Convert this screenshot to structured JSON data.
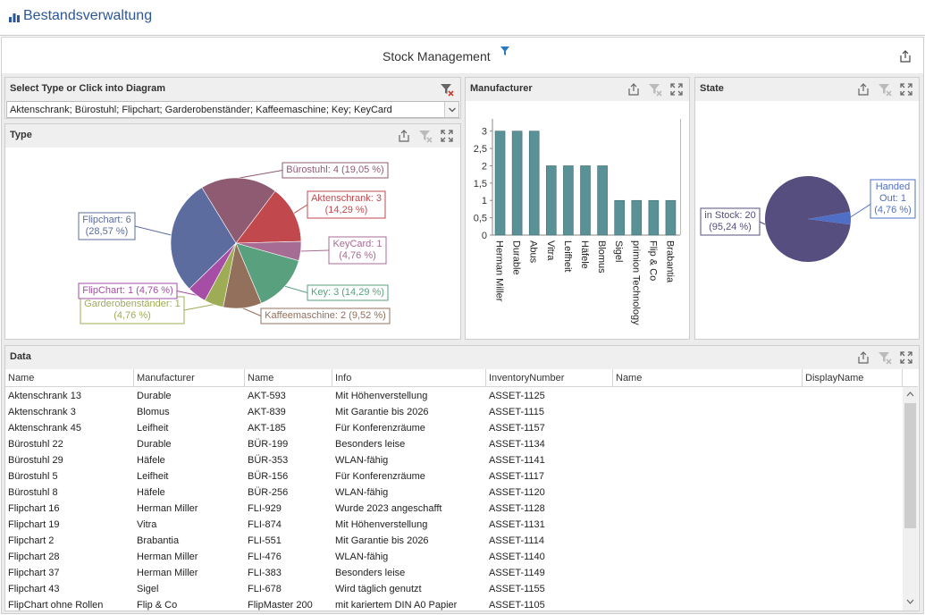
{
  "app": {
    "title": "Bestandsverwaltung"
  },
  "dashboard": {
    "title": "Stock Management"
  },
  "select_panel": {
    "title": "Select Type or Click into Diagram",
    "combo_value": "Aktenschrank; Bürostuhl; Flipchart; Garderobenständer; Kaffeemaschine; Key; KeyCard"
  },
  "type_panel": {
    "title": "Type"
  },
  "manufacturer_panel": {
    "title": "Manufacturer"
  },
  "state_panel": {
    "title": "State"
  },
  "data_panel": {
    "title": "Data"
  },
  "colors": {
    "accent": "#2b579a",
    "bar": "#5a9196",
    "state_stock": "#564e7e",
    "state_out": "#4f6fc7"
  },
  "chart_data": [
    {
      "type": "pie",
      "name": "Type",
      "slices": [
        {
          "label": "Bürostuhl",
          "value": 4,
          "label_text": "Bürostuhl: 4 (19,05 %)",
          "color": "#8f5b72"
        },
        {
          "label": "Aktenschrank",
          "value": 3,
          "label_text_1": "Aktenschrank: 3",
          "label_text_2": "(14,29 %)",
          "color": "#c1494d"
        },
        {
          "label": "KeyCard",
          "value": 1,
          "label_text_1": "KeyCard: 1",
          "label_text_2": "(4,76 %)",
          "color": "#a76c93"
        },
        {
          "label": "Key",
          "value": 3,
          "label_text": "Key: 3 (14,29 %)",
          "color": "#59a07e"
        },
        {
          "label": "Kaffeemaschine",
          "value": 2,
          "label_text": "Kaffeemaschine: 2 (9,52 %)",
          "color": "#93705c"
        },
        {
          "label": "Garderobenständer",
          "value": 1,
          "label_text_1": "Garderobenständer: 1",
          "label_text_2": "(4,76 %)",
          "color": "#9ead55"
        },
        {
          "label": "FlipChart",
          "value": 1,
          "label_text": "FlipChart: 1 (4,76 %)",
          "color": "#a64ea6"
        },
        {
          "label": "Flipchart",
          "value": 6,
          "label_text_1": "Flipchart: 6",
          "label_text_2": "(28,57 %)",
          "color": "#5c6c9e"
        }
      ]
    },
    {
      "type": "bar",
      "name": "Manufacturer",
      "categories": [
        "Herman Miller",
        "Durable",
        "Abus",
        "Vitra",
        "Leifheit",
        "Häfele",
        "Blomus",
        "Sigel",
        "primion Technology",
        "Flip & Co",
        "Brabantia"
      ],
      "values": [
        3,
        3,
        3,
        2,
        2,
        2,
        2,
        1,
        1,
        1,
        1
      ],
      "y_ticks": [
        "0",
        "0,5",
        "1",
        "1,5",
        "2",
        "2,5",
        "3"
      ],
      "ylim": [
        0,
        3.25
      ],
      "grid": false
    },
    {
      "type": "pie",
      "name": "State",
      "slices": [
        {
          "label": "in Stock",
          "value": 20,
          "label_text_1": "in Stock: 20",
          "label_text_2": "(95,24 %)"
        },
        {
          "label": "Handed Out",
          "value": 1,
          "label_text_1": "Handed",
          "label_text_2": "Out: 1",
          "label_text_3": "(4,76 %)"
        }
      ]
    }
  ],
  "grid": {
    "columns": [
      "Name",
      "Manufacturer",
      "Name",
      "Info",
      "InventoryNumber",
      "Name",
      "DisplayName"
    ],
    "rows": [
      [
        "Aktenschrank 13",
        "Durable",
        "AKT-593",
        "Mit Höhenverstellung",
        "ASSET-1125"
      ],
      [
        "Aktenschrank 3",
        "Blomus",
        "AKT-839",
        "Mit Garantie bis 2026",
        "ASSET-1115"
      ],
      [
        "Aktenschrank 45",
        "Leifheit",
        "AKT-185",
        "Für Konferenzräume",
        "ASSET-1157"
      ],
      [
        "Bürostuhl 22",
        "Durable",
        "BÜR-199",
        "Besonders leise",
        "ASSET-1134"
      ],
      [
        "Bürostuhl 29",
        "Häfele",
        "BÜR-353",
        "WLAN-fähig",
        "ASSET-1141"
      ],
      [
        "Bürostuhl 5",
        "Leifheit",
        "BÜR-156",
        "Für Konferenzräume",
        "ASSET-1117"
      ],
      [
        "Bürostuhl 8",
        "Häfele",
        "BÜR-256",
        "WLAN-fähig",
        "ASSET-1120"
      ],
      [
        "Flipchart 16",
        "Herman Miller",
        "FLI-929",
        "Wurde 2023 angeschafft",
        "ASSET-1128"
      ],
      [
        "Flipchart 19",
        "Vitra",
        "FLI-874",
        "Mit Höhenverstellung",
        "ASSET-1131"
      ],
      [
        "Flipchart 2",
        "Brabantia",
        "FLI-551",
        "Mit Garantie bis 2026",
        "ASSET-1114"
      ],
      [
        "Flipchart 28",
        "Herman Miller",
        "FLI-476",
        "WLAN-fähig",
        "ASSET-1140"
      ],
      [
        "Flipchart 37",
        "Herman Miller",
        "FLI-383",
        "Besonders leise",
        "ASSET-1149"
      ],
      [
        "Flipchart 43",
        "Sigel",
        "FLI-678",
        "Wird täglich genutzt",
        "ASSET-1155"
      ],
      [
        "FlipChart ohne Rollen",
        "Flip & Co",
        "FlipMaster 200",
        "mit kariertem DIN A0 Papier",
        "ASSET-1105"
      ]
    ]
  }
}
